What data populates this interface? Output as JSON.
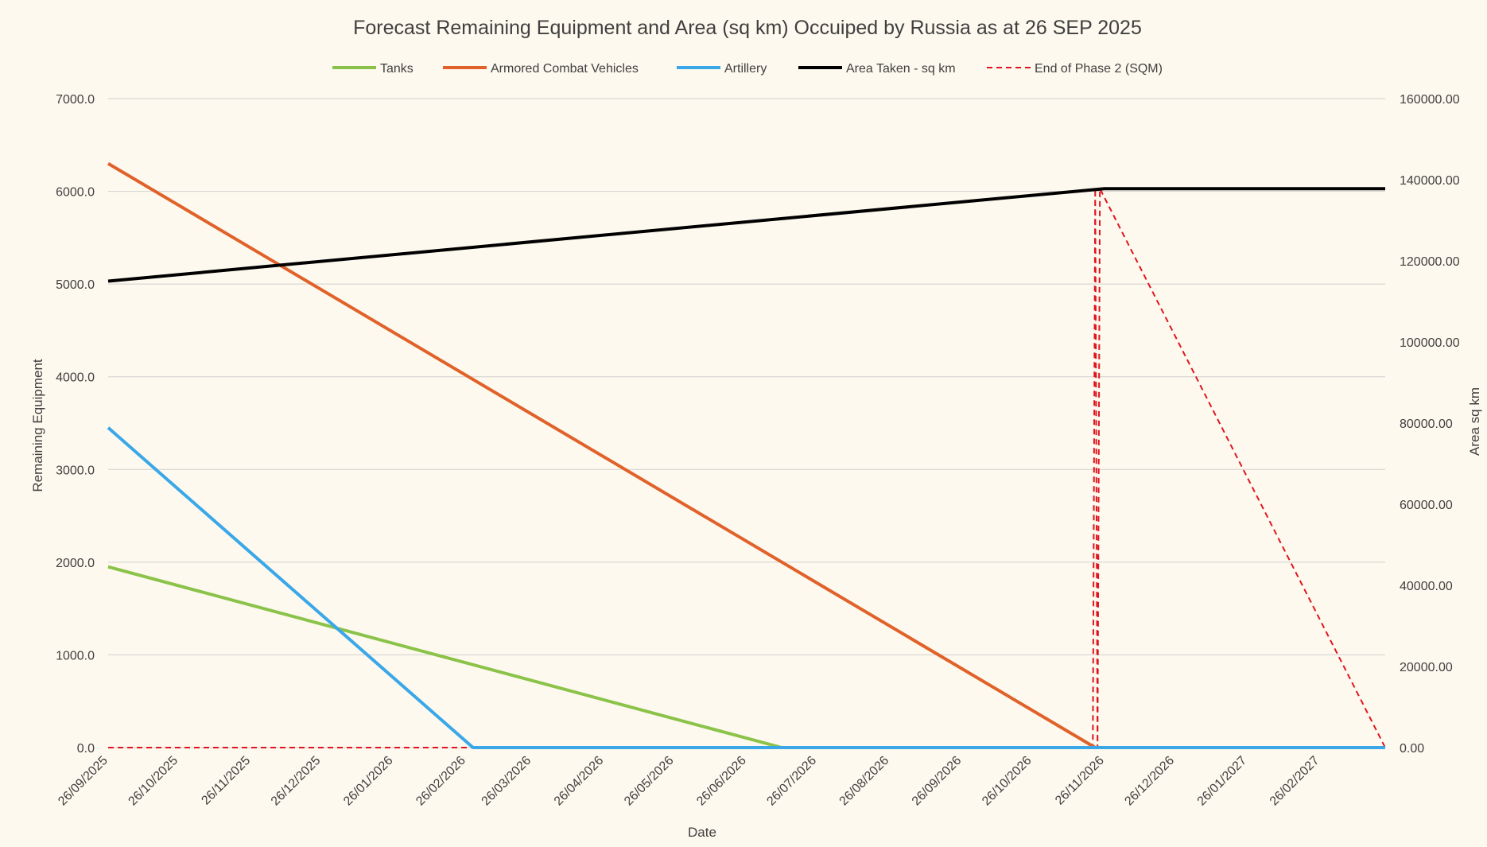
{
  "chart_data": {
    "type": "line",
    "title": "Forecast Remaining Equipment and Area (sq km) Occuiped by Russia as at 26 SEP 2025",
    "xlabel": "Date",
    "ylabel": "Remaining Equipment",
    "y2label": "Area sq km",
    "x_range": [
      "2025-09-26",
      "2027-03-26"
    ],
    "ylim": [
      0,
      7000
    ],
    "y2lim": [
      0,
      160000
    ],
    "y_ticks": [
      "0.0",
      "1000.0",
      "2000.0",
      "3000.0",
      "4000.0",
      "5000.0",
      "6000.0",
      "7000.0"
    ],
    "y2_ticks": [
      "0.00",
      "20000.00",
      "40000.00",
      "60000.00",
      "80000.00",
      "100000.00",
      "120000.00",
      "140000.00",
      "160000.00"
    ],
    "x_ticks": [
      "26/09/2025",
      "26/10/2025",
      "26/11/2025",
      "26/12/2025",
      "26/01/2026",
      "26/02/2026",
      "26/03/2026",
      "26/04/2026",
      "26/05/2026",
      "26/06/2026",
      "26/07/2026",
      "26/08/2026",
      "26/09/2026",
      "26/10/2026",
      "26/11/2026",
      "26/12/2026",
      "26/01/2027",
      "26/02/2027"
    ],
    "grid": "horizontal",
    "legend_position": "top",
    "series": [
      {
        "name": "Tanks",
        "axis": "left",
        "color": "#8BC34A",
        "style": "solid",
        "points": [
          [
            "2025-09-26",
            1950
          ],
          [
            "2026-07-11",
            0
          ],
          [
            "2027-03-26",
            0
          ]
        ]
      },
      {
        "name": "Armored Combat Vehicles",
        "axis": "left",
        "color": "#E0622A",
        "style": "solid",
        "points": [
          [
            "2025-09-26",
            6300
          ],
          [
            "2026-11-22",
            0
          ],
          [
            "2027-03-26",
            0
          ]
        ]
      },
      {
        "name": "Artillery",
        "axis": "left",
        "color": "#3AA8E8",
        "style": "solid",
        "points": [
          [
            "2025-09-26",
            3450
          ],
          [
            "2026-03-01",
            0
          ],
          [
            "2027-03-26",
            0
          ]
        ]
      },
      {
        "name": "Area Taken - sq km",
        "axis": "right",
        "color": "#000000",
        "style": "solid",
        "points": [
          [
            "2025-09-26",
            115000
          ],
          [
            "2026-11-26",
            137800
          ],
          [
            "2027-03-26",
            137800
          ]
        ]
      },
      {
        "name": "End of Phase 2 (SQM)",
        "axis": "right",
        "color": "#E0141E",
        "style": "dashed",
        "points": [
          [
            "2025-09-26",
            0
          ],
          [
            "2026-11-21",
            0
          ],
          [
            "2026-11-22",
            137800
          ],
          [
            "2026-11-23",
            0
          ],
          [
            "2026-11-24",
            137800
          ],
          [
            "2027-03-26",
            0
          ]
        ]
      }
    ]
  }
}
